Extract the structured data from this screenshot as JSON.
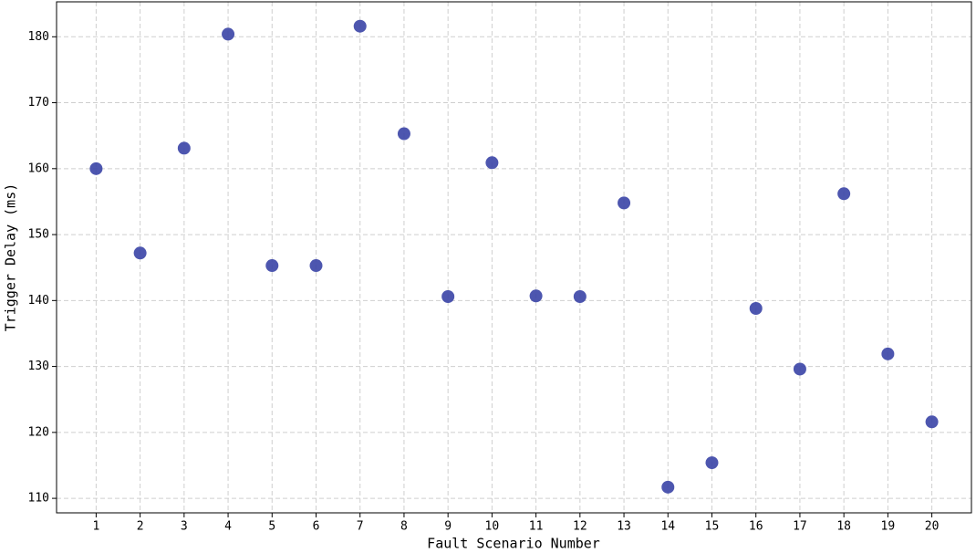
{
  "chart_data": {
    "type": "scatter",
    "x_label": "Fault Scenario Number",
    "y_label": "Trigger Delay (ms)",
    "x": [
      1,
      2,
      3,
      4,
      5,
      6,
      7,
      8,
      9,
      10,
      11,
      12,
      13,
      14,
      15,
      16,
      17,
      18,
      19,
      20
    ],
    "values": [
      160.0,
      147.2,
      163.1,
      180.4,
      145.3,
      145.3,
      181.6,
      165.3,
      140.6,
      160.9,
      140.7,
      140.6,
      154.8,
      111.7,
      115.4,
      138.8,
      129.6,
      156.2,
      131.9,
      121.6
    ],
    "color": "#3a44a6",
    "xlim": [
      0.1,
      20.9
    ],
    "ylim": [
      107.8,
      185.3
    ],
    "xticks": [
      1,
      2,
      3,
      4,
      5,
      6,
      7,
      8,
      9,
      10,
      11,
      12,
      13,
      14,
      15,
      16,
      17,
      18,
      19,
      20
    ],
    "yticks": [
      110,
      120,
      130,
      140,
      150,
      160,
      170,
      180
    ],
    "grid": true
  }
}
